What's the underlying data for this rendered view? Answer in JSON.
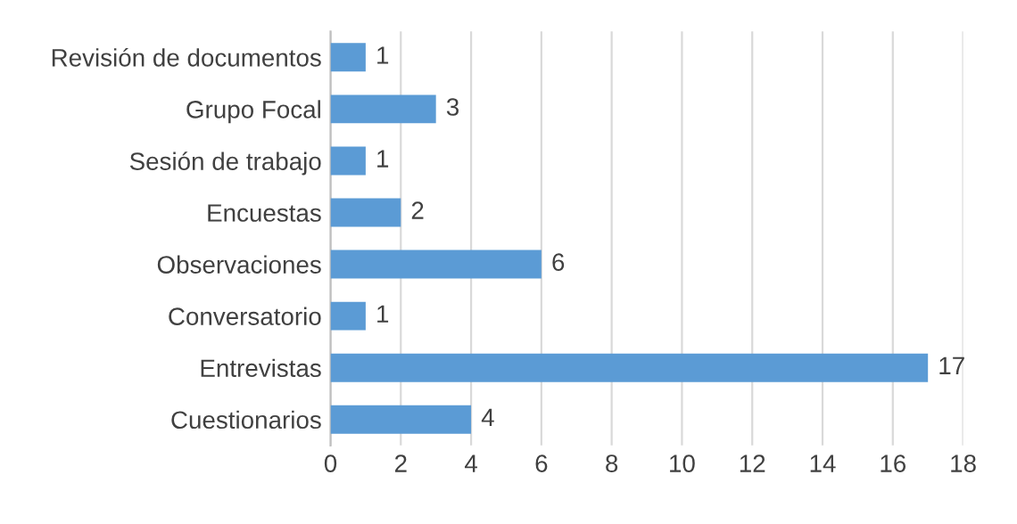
{
  "chart_data": {
    "type": "bar",
    "orientation": "horizontal",
    "categories": [
      "Revisión de documentos",
      "Grupo Focal",
      "Sesión de trabajo",
      "Encuestas",
      "Observaciones",
      "Conversatorio",
      "Entrevistas",
      "Cuestionarios"
    ],
    "values": [
      1,
      3,
      1,
      2,
      6,
      1,
      17,
      4
    ],
    "color": "#5b9bd5",
    "xlim": [
      0,
      18
    ],
    "xticks": [
      0,
      2,
      4,
      6,
      8,
      10,
      12,
      14,
      16,
      18
    ],
    "grid": "x",
    "data_labels": true
  }
}
